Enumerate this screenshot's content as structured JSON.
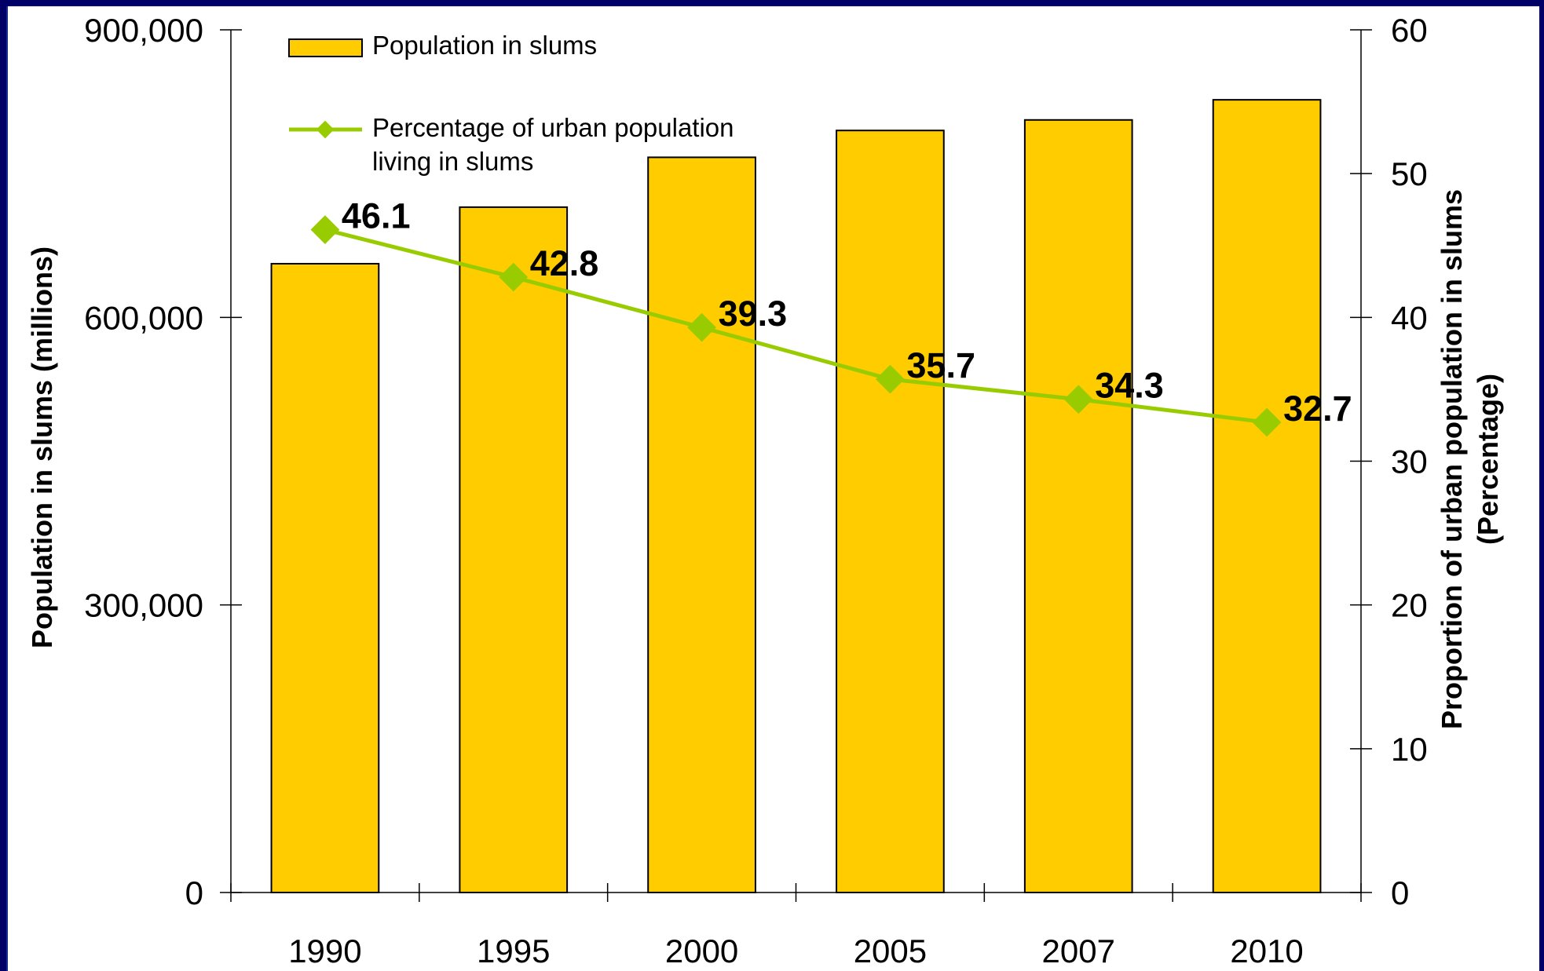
{
  "title": "",
  "chart_data": {
    "type": "bar",
    "categories": [
      "1990",
      "1995",
      "2000",
      "2005",
      "2007",
      "2010"
    ],
    "series": [
      {
        "name": "Population in slums",
        "type": "bar",
        "axis": "left",
        "color": "#ffcc00",
        "values": [
          656000,
          715000,
          767000,
          795000,
          806000,
          827000
        ]
      },
      {
        "name": "Percentage of urban population living in slums",
        "legend_lines": [
          "Percentage of urban population",
          "living in slums"
        ],
        "type": "line",
        "axis": "right",
        "color": "#99cc00",
        "values": [
          46.1,
          42.8,
          39.3,
          35.7,
          34.3,
          32.7
        ],
        "labels": [
          "46.1",
          "42.8",
          "39.3",
          "35.7",
          "34.3",
          "32.7"
        ]
      }
    ],
    "y_left": {
      "label": "Population in slums (millions)",
      "lim": [
        0,
        900000
      ],
      "ticks": [
        0,
        300000,
        600000,
        900000
      ],
      "tick_labels": [
        "0",
        "300,000",
        "600,000",
        "900,000"
      ]
    },
    "y_right": {
      "label_lines": [
        "Proportion of urban population in slums",
        "(Percentage)"
      ],
      "lim": [
        0,
        60
      ],
      "ticks": [
        0,
        10,
        20,
        30,
        40,
        50,
        60
      ],
      "tick_labels": [
        "0",
        "10",
        "20",
        "30",
        "40",
        "50",
        "60"
      ]
    },
    "grid": false,
    "legend_position": "top-left"
  }
}
